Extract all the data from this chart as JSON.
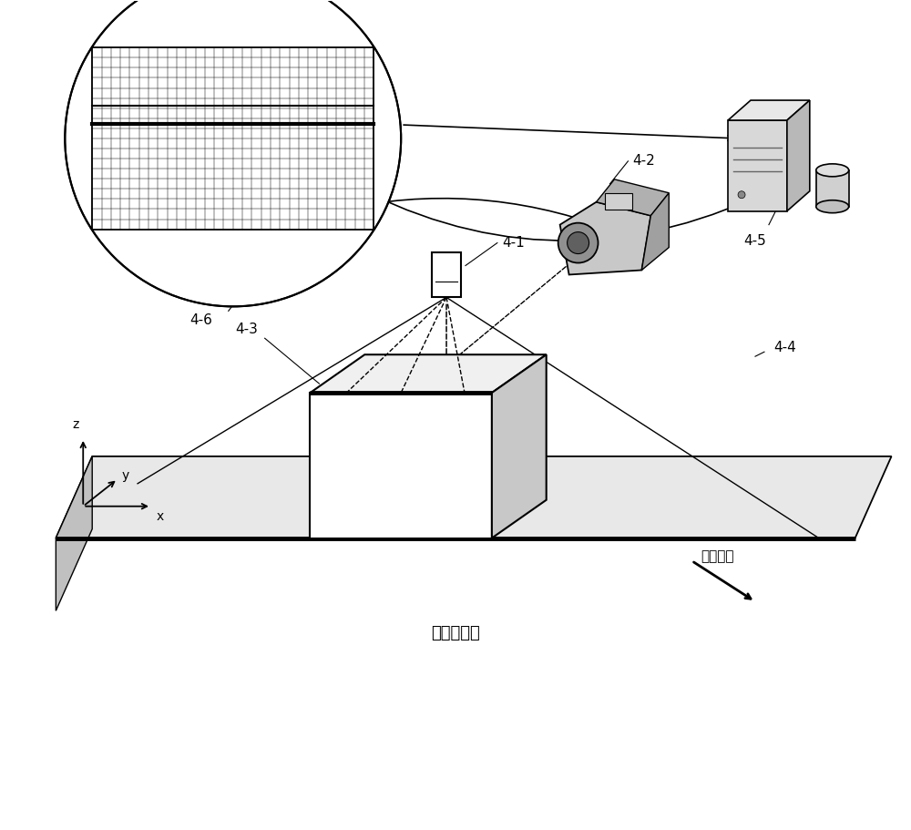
{
  "bg_color": "#ffffff",
  "labels": {
    "4-1": "4-1",
    "4-2": "4-2",
    "4-3": "4-3",
    "4-4": "4-4",
    "4-5": "4-5",
    "4-6": "4-6",
    "conveyor": "传送带平面",
    "motion": "运动方向"
  },
  "belt_face_color": "#e8e8e8",
  "belt_edge_color": "#000000",
  "rock_front_color": "#ffffff",
  "rock_top_color": "#f0f0f0",
  "rock_right_color": "#c8c8c8",
  "comp_body_color": "#d8d8d8",
  "comp_top_color": "#e8e8e8",
  "comp_right_color": "#b8b8b8",
  "cam_body_color": "#c8c8c8",
  "line_color": "#000000"
}
